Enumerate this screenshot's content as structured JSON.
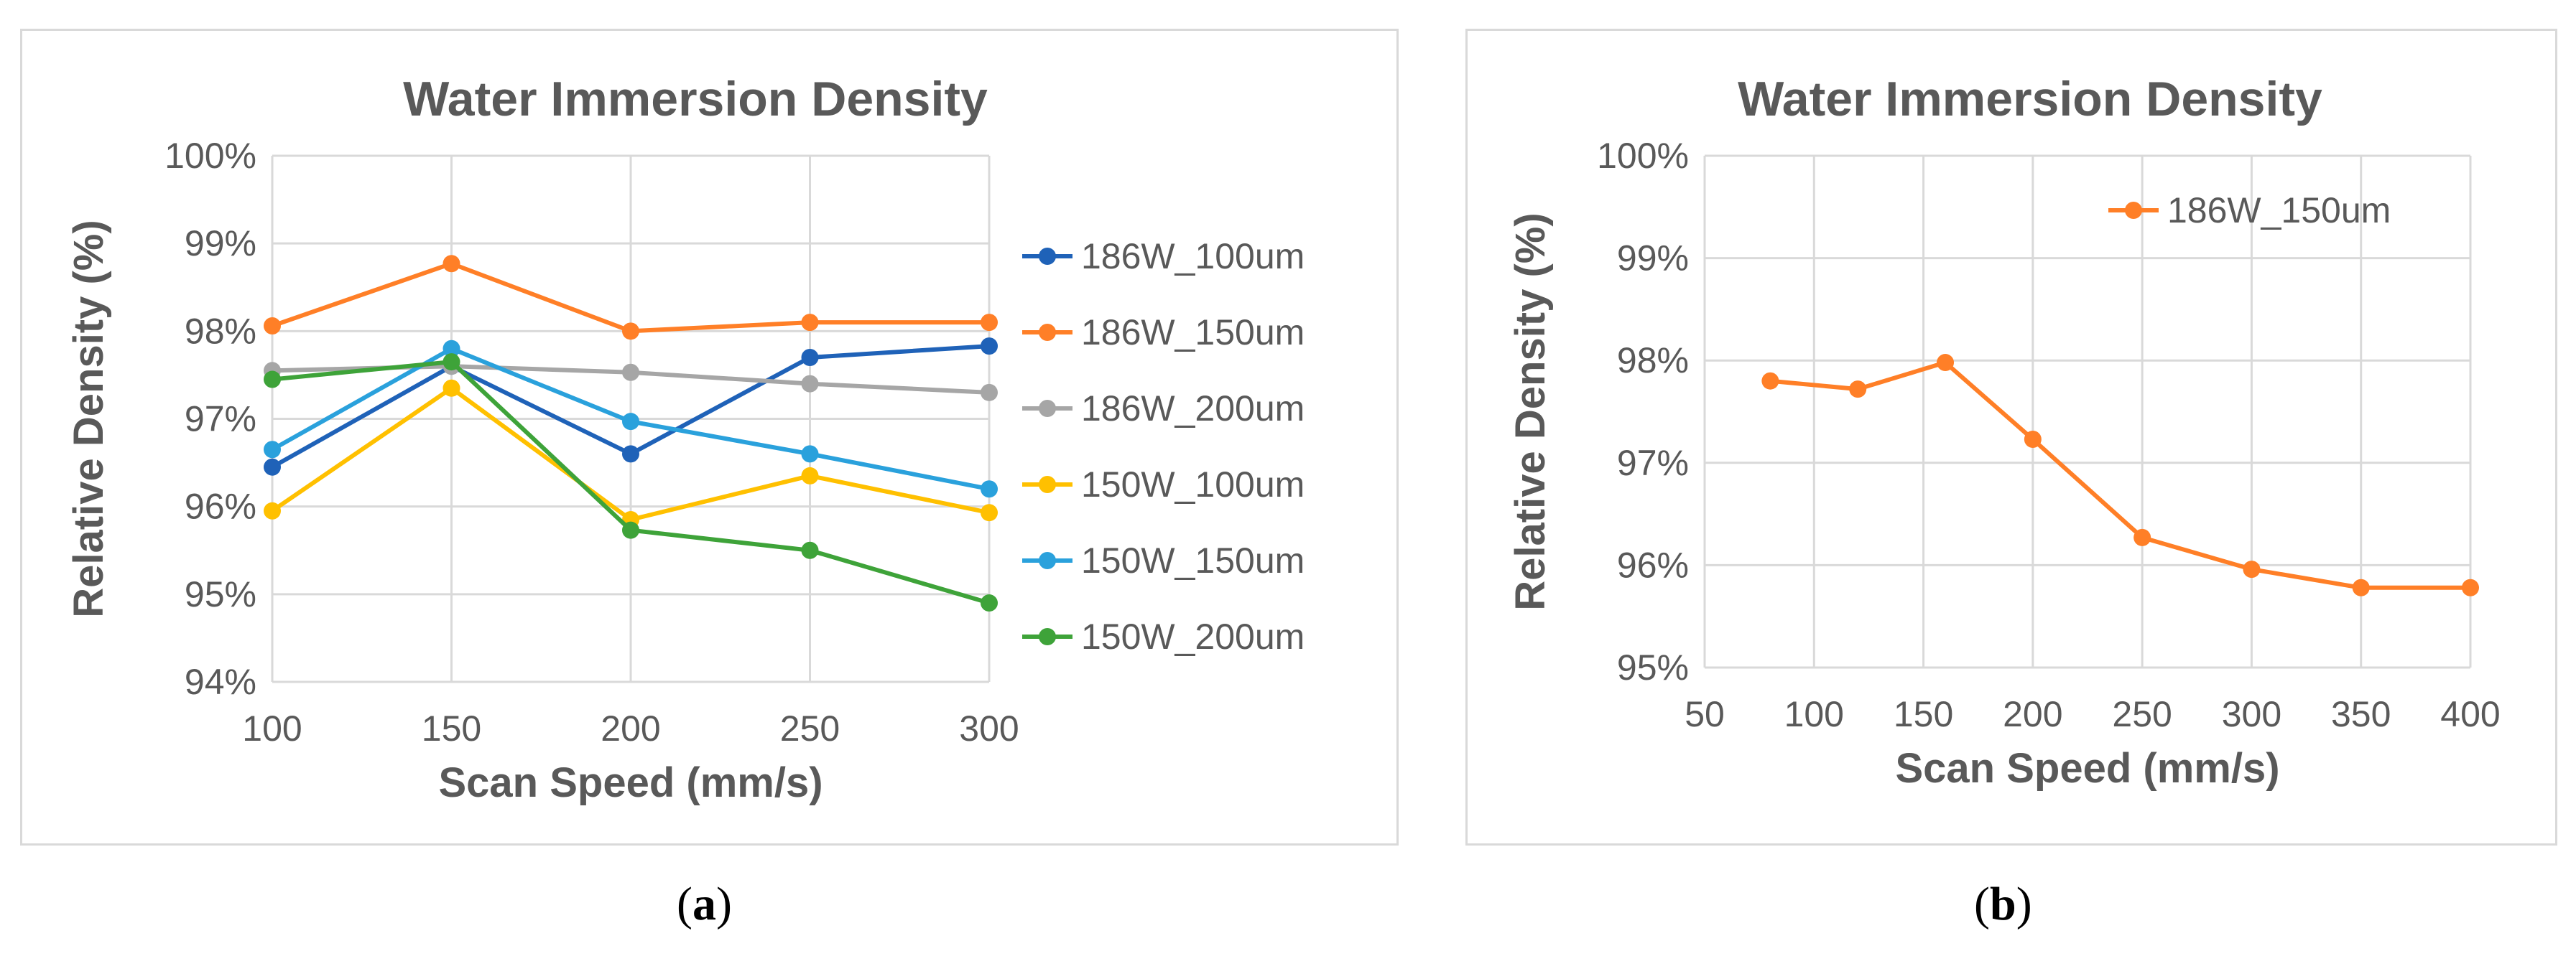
{
  "chart_data": [
    {
      "type": "line",
      "title": "Water Immersion Density",
      "xlabel": "Scan Speed (mm/s)",
      "ylabel": "Relative Density (%)",
      "x": [
        100,
        150,
        200,
        250,
        300
      ],
      "xticks": [
        "100",
        "150",
        "200",
        "250",
        "300"
      ],
      "ylim": [
        94,
        100
      ],
      "yticks": [
        "94%",
        "95%",
        "96%",
        "97%",
        "98%",
        "99%",
        "100%"
      ],
      "legend_position": "right",
      "series": [
        {
          "name": "186W_100um",
          "color": "#1f62b8",
          "values": [
            96.45,
            97.6,
            96.6,
            97.7,
            97.83
          ]
        },
        {
          "name": "186W_150um",
          "color": "#ff7f27",
          "values": [
            98.06,
            98.77,
            98.0,
            98.1,
            98.1
          ]
        },
        {
          "name": "186W_200um",
          "color": "#a6a6a6",
          "values": [
            97.55,
            97.6,
            97.53,
            97.4,
            97.3
          ]
        },
        {
          "name": "150W_100um",
          "color": "#ffc000",
          "values": [
            95.95,
            97.35,
            95.85,
            96.35,
            95.93
          ]
        },
        {
          "name": "150W_150um",
          "color": "#2aa1dc",
          "values": [
            96.65,
            97.8,
            96.97,
            96.6,
            96.2
          ]
        },
        {
          "name": "150W_200um",
          "color": "#3ea339",
          "values": [
            97.45,
            97.65,
            95.73,
            95.5,
            94.9
          ]
        }
      ]
    },
    {
      "type": "line",
      "title": "Water Immersion Density",
      "xlabel": "Scan Speed (mm/s)",
      "ylabel": "Relative Density (%)",
      "xlim": [
        50,
        400
      ],
      "xticks": [
        "50",
        "100",
        "150",
        "200",
        "250",
        "300",
        "350",
        "400"
      ],
      "ylim": [
        95,
        100
      ],
      "yticks": [
        "95%",
        "96%",
        "97%",
        "98%",
        "99%",
        "100%"
      ],
      "legend_position": "top-right",
      "series": [
        {
          "name": "186W_150um",
          "color": "#ff7f27",
          "x": [
            80,
            120,
            160,
            200,
            250,
            300,
            350,
            400
          ],
          "values": [
            97.8,
            97.72,
            97.98,
            97.23,
            96.27,
            95.96,
            95.78,
            95.78
          ]
        }
      ]
    }
  ],
  "captions": [
    "a",
    "b"
  ]
}
